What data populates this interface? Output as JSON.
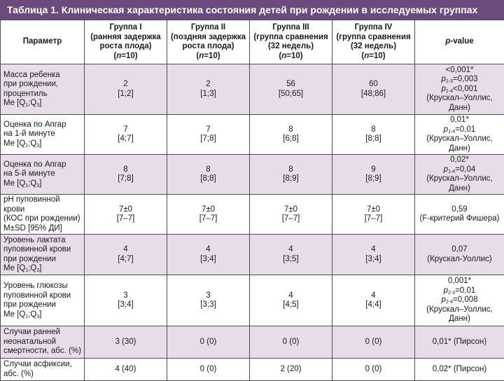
{
  "title": "Таблица 1. Клиническая характеристика состояния детей при рождении в исследуемых группах",
  "header": {
    "param": "Параметр",
    "groups": [
      {
        "l1": "Группа I",
        "l2": "(ранняя задержка",
        "l3": "роста плода)",
        "n_label": "n",
        "n_value": "=10"
      },
      {
        "l1": "Группа II",
        "l2": "(поздняя задержка",
        "l3": "роста плода)",
        "n_label": "n",
        "n_value": "=10"
      },
      {
        "l1": "Группа III",
        "l2": "(группа сравнения",
        "l3": "(32 недель)",
        "n_label": "n",
        "n_value": "=10"
      },
      {
        "l1": "Группа IV",
        "l2": "(группа сравнения",
        "l3": "(32 недель)",
        "n_label": "n",
        "n_value": "=10"
      }
    ],
    "pvalue_p": "p",
    "pvalue_rest": "-value"
  },
  "rows": [
    {
      "param": [
        "Масса ребенка",
        "при рождении,",
        "процентиль"
      ],
      "stat": {
        "pre": "Me  [Q",
        "s1": "1",
        "mid": ";Q",
        "s2": "3",
        "post": "]"
      },
      "values": [
        [
          "2",
          "[1;2]"
        ],
        [
          "2",
          "[1;3]"
        ],
        [
          "56",
          "[50;65]"
        ],
        [
          "60",
          "[48;86]"
        ]
      ],
      "pvalue": [
        {
          "text": "<0,001*"
        },
        {
          "p": "p",
          "sub": "1-3",
          "text": "=0,003"
        },
        {
          "p": "p",
          "sub": "1-4",
          "text": "<0,001"
        },
        {
          "text": "(Крускал–Уоллис,"
        },
        {
          "text": "Данн)"
        }
      ]
    },
    {
      "param": [
        "Оценка по Апгар",
        "на 1-й минуте"
      ],
      "stat": {
        "pre": "Me [Q",
        "s1": "1",
        "mid": ";Q",
        "s2": "3",
        "post": "]"
      },
      "values": [
        [
          "7",
          "[4;7]"
        ],
        [
          "7",
          "[7;8]"
        ],
        [
          "8",
          "[6;8]"
        ],
        [
          "8",
          "[8;8]"
        ]
      ],
      "pvalue": [
        {
          "text": "0,01*"
        },
        {
          "p": "p",
          "sub": "1-4",
          "text": "=0,01"
        },
        {
          "text": "(Крускал–Уоллис,"
        },
        {
          "text": "Данн)"
        }
      ]
    },
    {
      "param": [
        "Оценка по Апгар",
        "на 5-й минуте"
      ],
      "stat": {
        "pre": "Me [Q",
        "s1": "1",
        "mid": ";Q",
        "s2": "3",
        "post": "]"
      },
      "values": [
        [
          "8",
          "[7;8]"
        ],
        [
          "8",
          "[8;8]"
        ],
        [
          "8",
          "[8;9]"
        ],
        [
          "9",
          "[8;9]"
        ]
      ],
      "pvalue": [
        {
          "text": "0,02*"
        },
        {
          "p": "p",
          "sub": "1-4",
          "text": "=0,04"
        },
        {
          "text": "(Крускал–Уоллис,"
        },
        {
          "text": "Данн)"
        }
      ]
    },
    {
      "param": [
        "pH пуповинной крови",
        "(КОС при рождении)",
        "M±SD [95% ДИ]"
      ],
      "values": [
        [
          "7±0",
          "[7–7]"
        ],
        [
          "7±0",
          "[7–7]"
        ],
        [
          "7±0",
          "[7–7]"
        ],
        [
          "7±0",
          "[7–7]"
        ]
      ],
      "pvalue": [
        {
          "text": "0,59"
        },
        {
          "text": "(F-критерий Фишера)"
        }
      ]
    },
    {
      "param": [
        "Уровень лактата",
        "пуповинной крови",
        "при рождении"
      ],
      "stat": {
        "pre": "Me [Q",
        "s1": "1",
        "mid": ";Q",
        "s2": "3",
        "post": "]"
      },
      "values": [
        [
          "4",
          "[4;7]"
        ],
        [
          "4",
          "[3;4]"
        ],
        [
          "4",
          "[3;5]"
        ],
        [
          "4",
          "[3;4]"
        ]
      ],
      "pvalue": [
        {
          "text": "0,07"
        },
        {
          "text": "(Крускал-Уоллис)"
        }
      ]
    },
    {
      "param": [
        "Уровень глюкозы",
        "пуповинной крови",
        "при рождении"
      ],
      "stat": {
        "pre": "Me [Q",
        "s1": "1",
        "mid": ";Q",
        "s2": "3",
        "post": "]"
      },
      "values": [
        [
          "3",
          "[3;4]"
        ],
        [
          "3",
          "[3;3]"
        ],
        [
          "4",
          "[4;5]"
        ],
        [
          "4",
          "[4;4]"
        ]
      ],
      "pvalue": [
        {
          "text": "0,001*"
        },
        {
          "p": "p",
          "sub": "2-3",
          "text": "=0,01"
        },
        {
          "p": "p",
          "sub": "2-4",
          "text": "=0,008"
        },
        {
          "text": "(Крускал–Уоллис,"
        },
        {
          "text": "Данн)"
        }
      ]
    },
    {
      "param": [
        "Случаи ранней",
        "неонатальной",
        "смертности, абс. (%)"
      ],
      "values": [
        [
          "3 (30)"
        ],
        [
          "0 (0)"
        ],
        [
          "0 (0)"
        ],
        [
          "0 (0)"
        ]
      ],
      "pvalue": [
        {
          "text": "0,01* (Пирсон)"
        }
      ]
    },
    {
      "param": [
        "Случаи асфиксии,",
        "абс. (%)"
      ],
      "values": [
        [
          "4 (40)"
        ],
        [
          "0 (0)"
        ],
        [
          "2 (20)"
        ],
        [
          "0 (0)"
        ]
      ],
      "pvalue": [
        {
          "text": "0,02* (Пирсон)"
        }
      ]
    }
  ]
}
